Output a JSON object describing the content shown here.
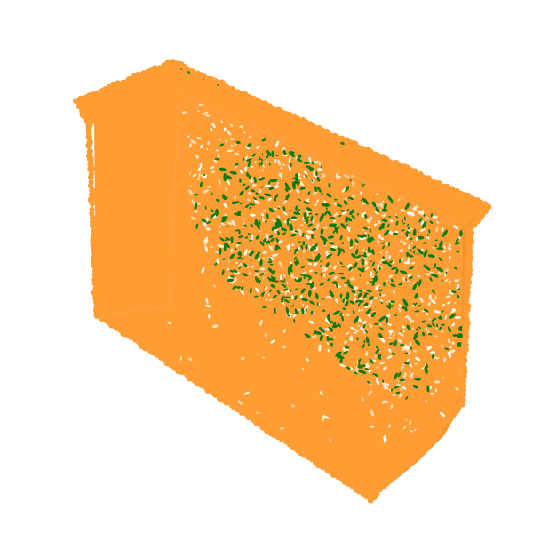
{
  "colors": {
    "background": "#ffffff",
    "body": "#fd9d33",
    "highlight": "#0a7a0a",
    "speckle_gap": "#ffffff"
  },
  "object": {
    "kind": "point-cloud-box",
    "highlight_label_icon": "point-cloud-icon"
  }
}
